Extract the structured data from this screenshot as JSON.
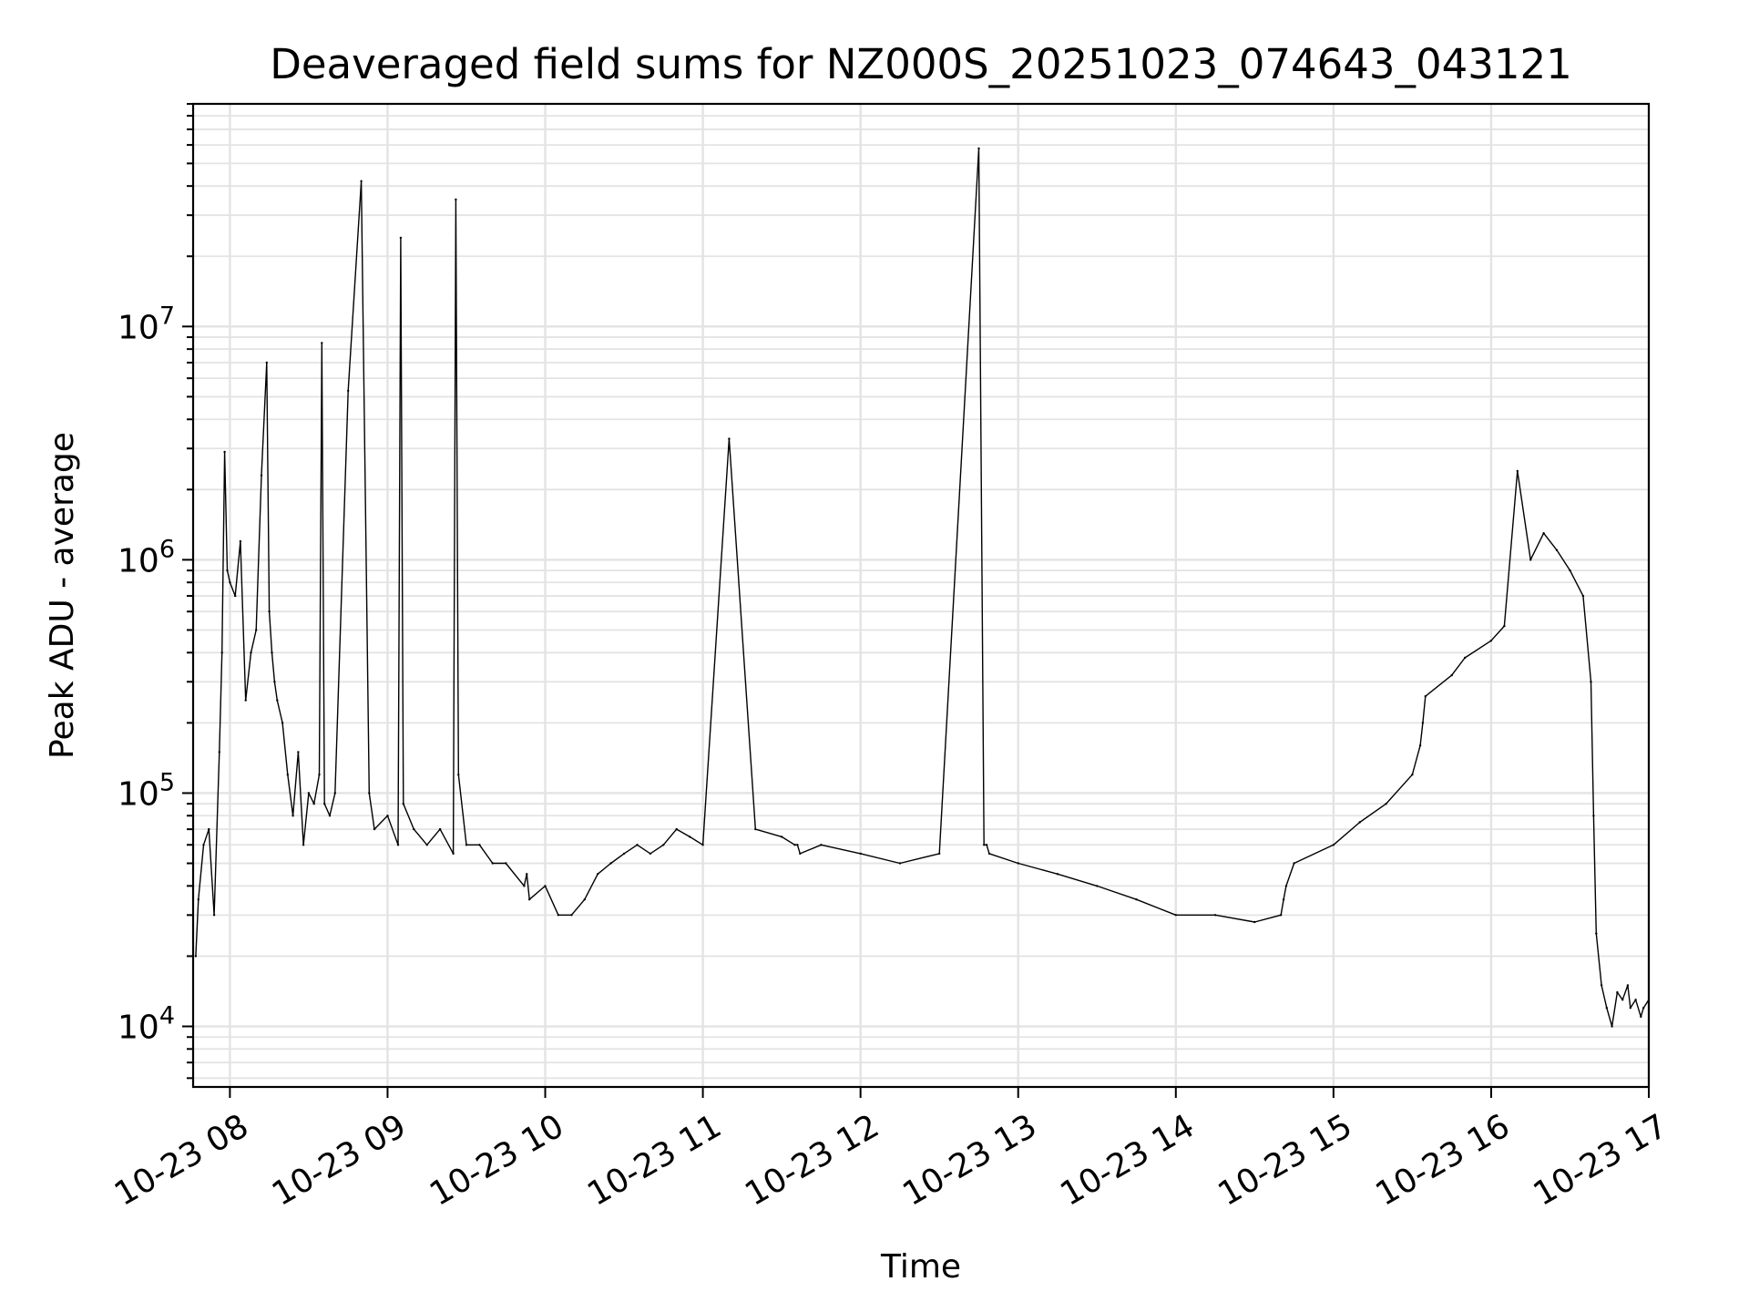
{
  "chart_data": {
    "type": "line",
    "title": "Deaveraged field sums for NZ000S_20251023_074643_043121",
    "xlabel": "Time",
    "ylabel": "Peak ADU - average",
    "yscale": "log",
    "ylim": [
      5500,
      90000000
    ],
    "xlim": [
      "2025-10-23 07:46",
      "2025-10-23 17:00"
    ],
    "x_ticks": [
      "10-23 08",
      "10-23 09",
      "10-23 10",
      "10-23 11",
      "10-23 12",
      "10-23 13",
      "10-23 14",
      "10-23 15",
      "10-23 16",
      "10-23 17"
    ],
    "y_ticks": [
      {
        "base": "10",
        "exp": "4",
        "value": 10000
      },
      {
        "base": "10",
        "exp": "5",
        "value": 100000
      },
      {
        "base": "10",
        "exp": "6",
        "value": 1000000
      },
      {
        "base": "10",
        "exp": "7",
        "value": 10000000
      }
    ],
    "grid": "major and minor",
    "line_color": "#000000",
    "series": [
      {
        "x": [
          "07:47",
          "07:48",
          "07:50",
          "07:52",
          "07:54",
          "07:56",
          "07:57",
          "07:58",
          "07:59",
          "08:00",
          "08:02",
          "08:04",
          "08:06",
          "08:08",
          "08:10",
          "08:12",
          "08:14",
          "08:15",
          "08:16",
          "08:17",
          "08:18",
          "08:20",
          "08:22",
          "08:24",
          "08:26",
          "08:28",
          "08:30",
          "08:32",
          "08:34",
          "08:35",
          "08:36",
          "08:38",
          "08:40",
          "08:45",
          "08:50",
          "08:53",
          "08:55",
          "09:00",
          "09:04",
          "09:05",
          "09:06",
          "09:10",
          "09:15",
          "09:20",
          "09:25",
          "09:26",
          "09:27",
          "09:30",
          "09:35",
          "09:40",
          "09:45",
          "09:52",
          "09:53",
          "09:54",
          "10:00",
          "10:05",
          "10:10",
          "10:15",
          "10:20",
          "10:25",
          "10:30",
          "10:35",
          "10:40",
          "10:45",
          "10:50",
          "10:55",
          "11:00",
          "11:10",
          "11:20",
          "11:30",
          "11:35",
          "11:36",
          "11:37",
          "11:45",
          "12:00",
          "12:15",
          "12:30",
          "12:45",
          "12:47",
          "12:48",
          "12:49",
          "13:00",
          "13:15",
          "13:30",
          "13:45",
          "14:00",
          "14:15",
          "14:30",
          "14:40",
          "14:41",
          "14:42",
          "14:45",
          "15:00",
          "15:10",
          "15:20",
          "15:30",
          "15:33",
          "15:34",
          "15:35",
          "15:45",
          "15:50",
          "16:00",
          "16:05",
          "16:10",
          "16:15",
          "16:20",
          "16:25",
          "16:30",
          "16:35",
          "16:38",
          "16:39",
          "16:40",
          "16:42",
          "16:44",
          "16:46",
          "16:48",
          "16:50",
          "16:52",
          "16:53",
          "16:55",
          "16:57",
          "16:58",
          "17:00"
        ],
        "y": [
          20000,
          35000,
          60000,
          70000,
          30000,
          150000,
          400000,
          2900000,
          900000,
          800000,
          700000,
          1200000,
          250000,
          400000,
          500000,
          2300000,
          7000000,
          600000,
          400000,
          300000,
          250000,
          200000,
          120000,
          80000,
          150000,
          60000,
          100000,
          90000,
          120000,
          8500000,
          90000,
          80000,
          100000,
          5300000,
          42000000,
          100000,
          70000,
          80000,
          60000,
          24000000,
          90000,
          70000,
          60000,
          70000,
          55000,
          35000000,
          120000,
          60000,
          60000,
          50000,
          50000,
          40000,
          45000,
          35000,
          40000,
          30000,
          30000,
          35000,
          45000,
          50000,
          55000,
          60000,
          55000,
          60000,
          70000,
          65000,
          60000,
          3300000,
          70000,
          65000,
          60000,
          60000,
          55000,
          60000,
          55000,
          50000,
          55000,
          58000000,
          60000,
          60000,
          55000,
          50000,
          45000,
          40000,
          35000,
          30000,
          30000,
          28000,
          30000,
          35000,
          40000,
          50000,
          60000,
          75000,
          90000,
          120000,
          160000,
          200000,
          260000,
          320000,
          380000,
          450000,
          520000,
          2400000,
          1000000,
          1300000,
          1100000,
          900000,
          700000,
          300000,
          80000,
          25000,
          15000,
          12000,
          10000,
          14000,
          13000,
          15000,
          12000,
          13000,
          11000,
          12000,
          13000
        ]
      }
    ]
  }
}
